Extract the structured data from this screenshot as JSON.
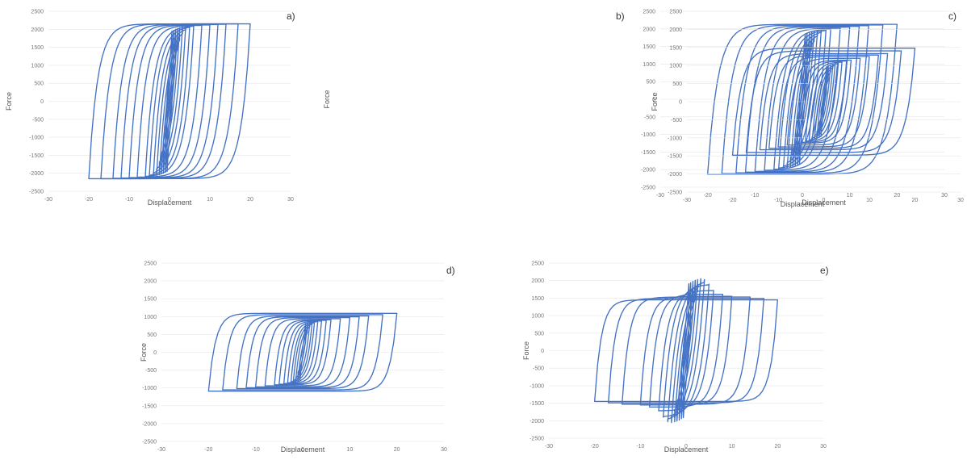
{
  "chart_data": [
    {
      "type": "line",
      "panel_label": "a)",
      "xlabel": "Displacement",
      "ylabel": "Force",
      "xlim": [
        -30,
        30
      ],
      "ylim": [
        -2500,
        2500
      ],
      "xticks": [
        -30,
        -20,
        -10,
        0,
        10,
        20,
        30
      ],
      "yticks": [
        -2500,
        -2000,
        -1500,
        -1000,
        -500,
        0,
        500,
        1000,
        1500,
        2000,
        2500
      ],
      "color": "#4472C4",
      "grid": true,
      "loops": [
        {
          "xmax": 0.6,
          "k": 2000,
          "m": 0,
          "fy": 1950
        },
        {
          "xmax": 1.0,
          "k": 2000,
          "m": 0,
          "fy": 1970
        },
        {
          "xmax": 1.5,
          "k": 2000,
          "m": 0,
          "fy": 2000
        },
        {
          "xmax": 2.0,
          "k": 2000,
          "m": 0,
          "fy": 2020
        },
        {
          "xmax": 2.5,
          "k": 2000,
          "m": 0,
          "fy": 2040
        },
        {
          "xmax": 3.2,
          "k": 2000,
          "m": 0,
          "fy": 2060
        },
        {
          "xmax": 4.0,
          "k": 2000,
          "m": 0,
          "fy": 2080
        },
        {
          "xmax": 5.0,
          "k": 2000,
          "m": 0,
          "fy": 2090
        },
        {
          "xmax": 6.0,
          "k": 2000,
          "m": 0,
          "fy": 2100
        },
        {
          "xmax": 8.0,
          "k": 2000,
          "m": 0,
          "fy": 2110
        },
        {
          "xmax": 10.0,
          "k": 2000,
          "m": 0,
          "fy": 2120
        },
        {
          "xmax": 12.0,
          "k": 2000,
          "m": 0,
          "fy": 2130
        },
        {
          "xmax": 14.0,
          "k": 2000,
          "m": 0,
          "fy": 2140
        },
        {
          "xmax": 17.0,
          "k": 2000,
          "m": 0,
          "fy": 2150
        },
        {
          "xmax": 20.0,
          "k": 2000,
          "m": 0,
          "fy": 2150
        }
      ]
    },
    {
      "type": "line",
      "panel_label": "b)",
      "xlabel": "Displacement",
      "ylabel": "Force",
      "xlim": [
        -30,
        30
      ],
      "ylim": [
        -2500,
        2500
      ],
      "xticks": [
        -30,
        -20,
        -10,
        0,
        10,
        20,
        30
      ],
      "yticks": [
        -2500,
        -2000,
        -1500,
        -1000,
        -500,
        0,
        500,
        1000,
        1500,
        2000,
        2500
      ],
      "color": "#4472C4",
      "grid": true,
      "loops": [
        {
          "xmax": 0.6,
          "k": 2000,
          "m": 10,
          "fy": 1850
        },
        {
          "xmax": 1.0,
          "k": 2000,
          "m": 10,
          "fy": 1870
        },
        {
          "xmax": 1.5,
          "k": 2000,
          "m": 10,
          "fy": 1890
        },
        {
          "xmax": 2.0,
          "k": 2000,
          "m": 10,
          "fy": 1900
        },
        {
          "xmax": 2.5,
          "k": 2000,
          "m": 10,
          "fy": 1910
        },
        {
          "xmax": 3.2,
          "k": 2000,
          "m": 10,
          "fy": 1920
        },
        {
          "xmax": 4.0,
          "k": 2000,
          "m": 10,
          "fy": 1930
        },
        {
          "xmax": 5.0,
          "k": 2000,
          "m": 10,
          "fy": 1930
        },
        {
          "xmax": 6.0,
          "k": 2000,
          "m": 10,
          "fy": 1940
        },
        {
          "xmax": 8.0,
          "k": 2000,
          "m": 10,
          "fy": 1940
        },
        {
          "xmax": 10.0,
          "k": 2000,
          "m": 10,
          "fy": 1950
        },
        {
          "xmax": 12.0,
          "k": 2000,
          "m": 10,
          "fy": 1950
        },
        {
          "xmax": 14.0,
          "k": 2000,
          "m": 10,
          "fy": 1950
        },
        {
          "xmax": 17.0,
          "k": 2000,
          "m": 10,
          "fy": 1940
        },
        {
          "xmax": 20.0,
          "k": 2000,
          "m": 10,
          "fy": 1930
        }
      ]
    },
    {
      "type": "line",
      "panel_label": "c)",
      "xlabel": "Displacement",
      "ylabel": "Force",
      "xlim": [
        -30,
        30
      ],
      "ylim": [
        -2500,
        2500
      ],
      "xticks": [
        -30,
        -20,
        -10,
        0,
        10,
        20,
        30
      ],
      "yticks": [
        -2500,
        -2000,
        -1500,
        -1000,
        -500,
        0,
        500,
        1000,
        1500,
        2000,
        2500
      ],
      "color": "#4472C4",
      "grid": true,
      "loops": [
        {
          "xmax": 0.6,
          "k": 1600,
          "m": 25,
          "fy": 950
        },
        {
          "xmax": 1.0,
          "k": 1600,
          "m": 25,
          "fy": 960
        },
        {
          "xmax": 1.5,
          "k": 1600,
          "m": 25,
          "fy": 970
        },
        {
          "xmax": 2.0,
          "k": 1600,
          "m": 25,
          "fy": 980
        },
        {
          "xmax": 2.5,
          "k": 1600,
          "m": 25,
          "fy": 990
        },
        {
          "xmax": 3.2,
          "k": 1600,
          "m": 25,
          "fy": 995
        },
        {
          "xmax": 4.0,
          "k": 1600,
          "m": 25,
          "fy": 1000
        },
        {
          "xmax": 5.0,
          "k": 1600,
          "m": 25,
          "fy": 1000
        },
        {
          "xmax": 6.0,
          "k": 1600,
          "m": 25,
          "fy": 1000
        },
        {
          "xmax": 8.0,
          "k": 1600,
          "m": 25,
          "fy": 1000
        },
        {
          "xmax": 10.0,
          "k": 1600,
          "m": 25,
          "fy": 1000
        },
        {
          "xmax": 12.0,
          "k": 1600,
          "m": 25,
          "fy": 990
        },
        {
          "xmax": 14.0,
          "k": 1600,
          "m": 25,
          "fy": 980
        },
        {
          "xmax": 17.0,
          "k": 1600,
          "m": 25,
          "fy": 980
        },
        {
          "xmax": 20.0,
          "k": 1600,
          "m": 25,
          "fy": 980
        }
      ]
    },
    {
      "type": "line",
      "panel_label": "d)",
      "xlabel": "Displacement",
      "ylabel": "Force",
      "xlim": [
        -30,
        30
      ],
      "ylim": [
        -2500,
        2500
      ],
      "xticks": [
        -30,
        -20,
        -10,
        0,
        10,
        20,
        30
      ],
      "yticks": [
        -2500,
        -2000,
        -1500,
        -1000,
        -500,
        0,
        500,
        1000,
        1500,
        2000,
        2500
      ],
      "color": "#4472C4",
      "grid": true,
      "loops": [
        {
          "xmax": 0.6,
          "k": 1500,
          "m": 12,
          "fy": 800
        },
        {
          "xmax": 1.0,
          "k": 1500,
          "m": 12,
          "fy": 805
        },
        {
          "xmax": 1.5,
          "k": 1500,
          "m": 12,
          "fy": 810
        },
        {
          "xmax": 2.0,
          "k": 1500,
          "m": 12,
          "fy": 815
        },
        {
          "xmax": 2.5,
          "k": 1500,
          "m": 12,
          "fy": 820
        },
        {
          "xmax": 3.2,
          "k": 1500,
          "m": 12,
          "fy": 825
        },
        {
          "xmax": 4.0,
          "k": 1500,
          "m": 12,
          "fy": 830
        },
        {
          "xmax": 5.0,
          "k": 1500,
          "m": 12,
          "fy": 835
        },
        {
          "xmax": 6.0,
          "k": 1500,
          "m": 12,
          "fy": 840
        },
        {
          "xmax": 8.0,
          "k": 1500,
          "m": 12,
          "fy": 845
        },
        {
          "xmax": 10.0,
          "k": 1500,
          "m": 12,
          "fy": 850
        },
        {
          "xmax": 12.0,
          "k": 1500,
          "m": 12,
          "fy": 850
        },
        {
          "xmax": 14.0,
          "k": 1500,
          "m": 12,
          "fy": 850
        },
        {
          "xmax": 17.0,
          "k": 1500,
          "m": 12,
          "fy": 850
        },
        {
          "xmax": 20.0,
          "k": 1500,
          "m": 12,
          "fy": 850
        }
      ]
    },
    {
      "type": "line",
      "panel_label": "e)",
      "xlabel": "Displacement",
      "ylabel": "Force",
      "xlim": [
        -30,
        30
      ],
      "ylim": [
        -2500,
        2500
      ],
      "xticks": [
        -30,
        -20,
        -10,
        0,
        10,
        20,
        30
      ],
      "yticks": [
        -2500,
        -2000,
        -1500,
        -1000,
        -500,
        0,
        500,
        1000,
        1500,
        2000,
        2500
      ],
      "color": "#4472C4",
      "grid": true,
      "loops": [
        {
          "xmax": 0.6,
          "k": 2000,
          "m": 20,
          "fy": 1900
        },
        {
          "xmax": 1.0,
          "k": 2000,
          "m": 20,
          "fy": 1920
        },
        {
          "xmax": 1.5,
          "k": 2000,
          "m": 20,
          "fy": 1950
        },
        {
          "xmax": 2.0,
          "k": 2000,
          "m": 20,
          "fy": 1970
        },
        {
          "xmax": 2.5,
          "k": 2000,
          "m": 20,
          "fy": 1980
        },
        {
          "xmax": 3.2,
          "k": 2000,
          "m": 20,
          "fy": 1990
        },
        {
          "xmax": 4.0,
          "k": 2000,
          "m": 20,
          "fy": 1950
        },
        {
          "xmax": 5.0,
          "k": 2000,
          "m": 20,
          "fy": 1800
        },
        {
          "xmax": 6.0,
          "k": 2000,
          "m": 20,
          "fy": 1600
        },
        {
          "xmax": 8.0,
          "k": 2000,
          "m": 20,
          "fy": 1450
        },
        {
          "xmax": 10.0,
          "k": 2000,
          "m": 20,
          "fy": 1350
        },
        {
          "xmax": 14.0,
          "k": 2000,
          "m": 20,
          "fy": 1250
        },
        {
          "xmax": 17.0,
          "k": 2000,
          "m": 20,
          "fy": 1150
        },
        {
          "xmax": 20.0,
          "k": 2000,
          "m": 20,
          "fy": 1050
        }
      ]
    }
  ]
}
